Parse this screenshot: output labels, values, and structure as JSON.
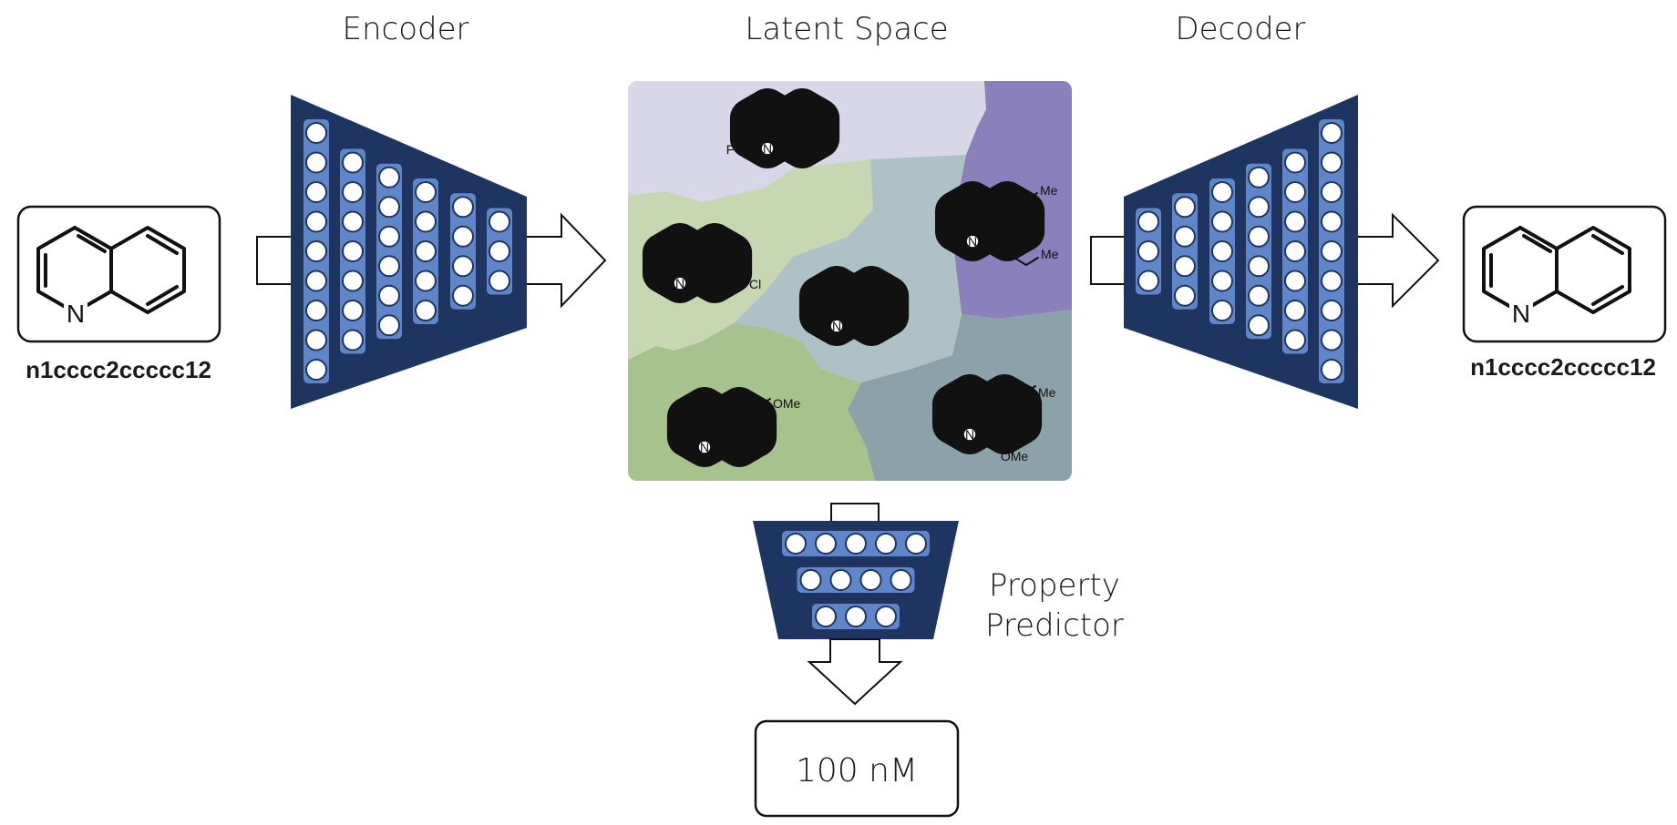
{
  "titles": {
    "encoder": "Encoder",
    "latent": "Latent Space",
    "decoder": "Decoder"
  },
  "input": {
    "smiles": "n1cccc2ccccc12",
    "atom": "N"
  },
  "output": {
    "smiles": "n1cccc2ccccc12",
    "atom": "N"
  },
  "predictor": {
    "label_line1": "Property",
    "label_line2": "Predictor"
  },
  "prediction": {
    "value": "100 nM"
  },
  "latent_molecules": {
    "top": {
      "labels": [
        "F",
        "N"
      ]
    },
    "left": {
      "labels": [
        "N",
        "Cl"
      ]
    },
    "center": {
      "labels": [
        "N"
      ]
    },
    "right_top": {
      "labels": [
        "N",
        "Me",
        "O",
        "Me"
      ]
    },
    "bottom_left": {
      "labels": [
        "N",
        "OMe"
      ]
    },
    "bottom_right": {
      "labels": [
        "N",
        "Me",
        "OMe"
      ]
    }
  },
  "colors": {
    "network_dark": "#1e3461",
    "network_column": "#5f86c9",
    "region_lavender": "#d8d6e9",
    "region_purple": "#8a80bb",
    "region_lightgreen": "#c6d7b2",
    "region_green": "#a6c38d",
    "region_grayblue": "#adc1c6",
    "region_slate": "#8ba2ab"
  },
  "icons": {
    "encoder": "funnel-network-icon",
    "decoder": "funnel-network-icon",
    "arrows": "hollow-arrow-icon"
  }
}
